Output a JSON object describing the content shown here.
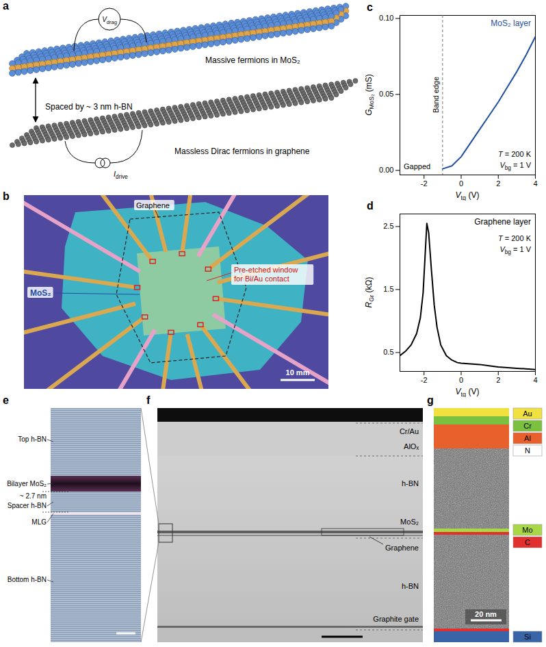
{
  "chart_data": [
    {
      "panel": "c",
      "type": "line",
      "xlabel": [
        "V",
        "tg",
        " (V)"
      ],
      "ylabel": [
        "G",
        "MoS₂",
        " (mS)"
      ],
      "x": [
        -1,
        -0.5,
        0,
        0.5,
        1,
        1.5,
        2,
        2.5,
        3,
        3.5,
        4
      ],
      "series": [
        {
          "name": "MoS₂ layer",
          "color": "#1f4fa0",
          "values": [
            0.001,
            0.003,
            0.009,
            0.018,
            0.027,
            0.036,
            0.045,
            0.055,
            0.065,
            0.076,
            0.088
          ]
        }
      ],
      "xlim": [
        -3.3,
        4
      ],
      "xticks": [
        -2,
        0,
        2,
        4
      ],
      "ylim": [
        -0.003,
        0.102
      ],
      "yticks": [
        {
          "value": 0,
          "label": "0.00"
        },
        {
          "value": 0.05,
          "label": "0.05"
        },
        {
          "value": 0.1,
          "label": "0.10"
        }
      ],
      "annotations": [
        {
          "text": "Band edge",
          "x": -1
        },
        {
          "text": "Gapped"
        }
      ],
      "conditions": [
        [
          "T",
          "",
          " = 200 K"
        ],
        [
          "V",
          "bg",
          " = 1 V"
        ]
      ]
    },
    {
      "panel": "d",
      "type": "line",
      "xlabel": [
        "V",
        "tg",
        " (V)"
      ],
      "ylabel": [
        "R",
        "Gr",
        " (kΩ)"
      ],
      "x": [
        -3.3,
        -3,
        -2.7,
        -2.4,
        -2.2,
        -2.05,
        -1.95,
        -1.85,
        -1.75,
        -1.6,
        -1.45,
        -1.3,
        -1.1,
        -0.8,
        -0.5,
        -0.2,
        0,
        0.5,
        1,
        1.5,
        2,
        2.5,
        3,
        3.5,
        4
      ],
      "series": [
        {
          "name": "Graphene layer",
          "color": "#000000",
          "values": [
            0.45,
            0.52,
            0.62,
            0.8,
            1.05,
            1.45,
            2.0,
            2.55,
            2.4,
            1.8,
            1.25,
            0.9,
            0.62,
            0.45,
            0.38,
            0.34,
            0.33,
            0.32,
            0.31,
            0.29,
            0.27,
            0.26,
            0.25,
            0.24,
            0.23
          ]
        }
      ],
      "xlim": [
        -3.3,
        4
      ],
      "xticks": [
        -2,
        0,
        2,
        4
      ],
      "ylim": [
        0.2,
        2.7
      ],
      "yticks": [
        0.5,
        1.5,
        2.5
      ],
      "conditions": [
        [
          "T",
          "",
          " = 200 K"
        ],
        [
          "V",
          "bg",
          " = 1 V"
        ]
      ]
    }
  ],
  "figure": {
    "a": {
      "panel": "a",
      "top_layer": "Massive fermions in MoS₂",
      "spacer": "Spaced by ~ 3 nm h-BN",
      "bottom_layer": "Massless Dirac fermions in graphene",
      "voltage": [
        "V",
        "drag",
        ""
      ],
      "current": [
        "I",
        "drive",
        ""
      ]
    },
    "b": {
      "panel": "b",
      "labels": {
        "graphene": "Graphene",
        "mos2": "MoS₂",
        "window": "Pre-etched window for Bi/Au contact"
      },
      "scale_bar": "10 mm"
    },
    "e": {
      "panel": "e",
      "labels": [
        "Top h-BN",
        "Bilayer MoS₂",
        "~ 2.7 nm",
        "Spacer h-BN",
        "MLG",
        "Bottom h-BN"
      ]
    },
    "f": {
      "panel": "f",
      "labels": [
        "Cr/Au",
        "AlOₓ",
        "h-BN",
        "MoS₂",
        "Graphene",
        "h-BN",
        "Graphite gate"
      ]
    },
    "g": {
      "panel": "g",
      "elements": [
        {
          "label": "Au",
          "color": "#f0e040"
        },
        {
          "label": "Cr",
          "color": "#7cc040"
        },
        {
          "label": "Al",
          "color": "#e8602c"
        },
        {
          "label": "N",
          "color": "#ffffff"
        },
        {
          "label": "Mo",
          "color": "#a8d848"
        },
        {
          "label": "C",
          "color": "#e03030"
        },
        {
          "label": "Si",
          "color": "#3a64a8"
        }
      ],
      "scale_bar": "20 nm"
    }
  }
}
